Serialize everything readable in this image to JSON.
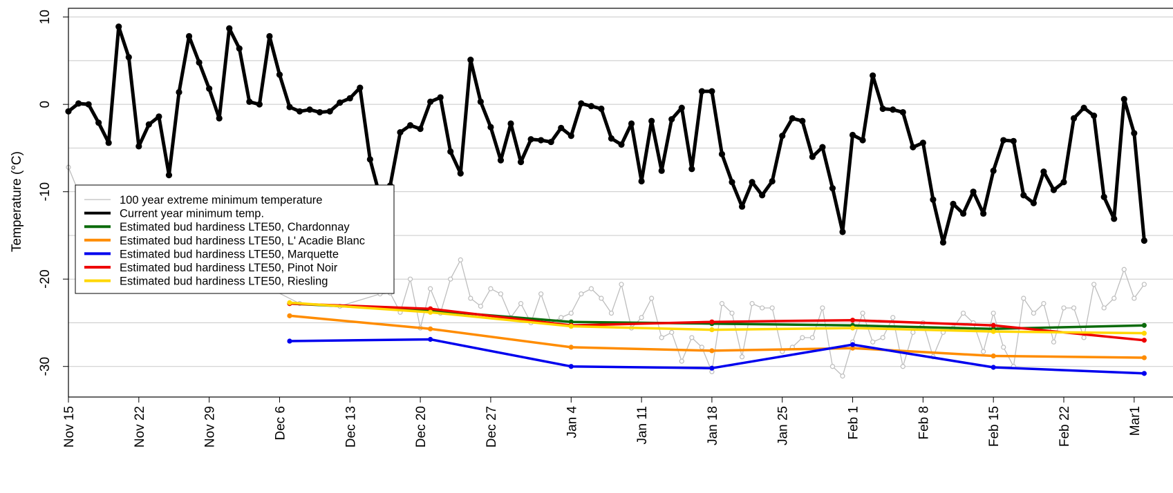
{
  "chart_data": {
    "type": "line",
    "title": "",
    "xlabel": "",
    "ylabel": "Temperature (°C)",
    "ylim": [
      -33.5,
      11
    ],
    "xlim": [
      "2021-11-15",
      "2022-03-05"
    ],
    "grid": "horizontal",
    "legend_position": "middle-left",
    "yticks": [
      10,
      0,
      -10,
      -20,
      -30
    ],
    "xticks": [
      {
        "date": "2021-11-15",
        "label": "Nov 15"
      },
      {
        "date": "2021-11-22",
        "label": "Nov 22"
      },
      {
        "date": "2021-11-29",
        "label": "Nov 29"
      },
      {
        "date": "2021-12-06",
        "label": "Dec 6"
      },
      {
        "date": "2021-12-13",
        "label": "Dec 13"
      },
      {
        "date": "2021-12-20",
        "label": "Dec 20"
      },
      {
        "date": "2021-12-27",
        "label": "Dec 27"
      },
      {
        "date": "2022-01-04",
        "label": "Jan 4"
      },
      {
        "date": "2022-01-11",
        "label": "Jan 11"
      },
      {
        "date": "2022-01-18",
        "label": "Jan 18"
      },
      {
        "date": "2022-01-25",
        "label": "Jan 25"
      },
      {
        "date": "2022-02-01",
        "label": "Feb 1"
      },
      {
        "date": "2022-02-08",
        "label": "Feb 8"
      },
      {
        "date": "2022-02-15",
        "label": "Feb 15"
      },
      {
        "date": "2022-02-22",
        "label": "Feb 22"
      },
      {
        "date": "2022-03-01",
        "label": "Mar1"
      }
    ],
    "series": [
      {
        "name": "100 year extreme minimum temperature",
        "color": "#bdbdbd",
        "style": "thin-open-markers",
        "points": [
          [
            "2021-11-15",
            -7.2
          ],
          [
            "2021-11-16",
            -10
          ],
          [
            "2021-12-08",
            -22.8
          ],
          [
            "2021-12-12",
            -23.1
          ],
          [
            "2021-12-16",
            -21.7
          ],
          [
            "2021-12-17",
            -21.6
          ],
          [
            "2021-12-18",
            -23.8
          ],
          [
            "2021-12-19",
            -20
          ],
          [
            "2021-12-20",
            -25.6
          ],
          [
            "2021-12-21",
            -21.1
          ],
          [
            "2021-12-22",
            -23.9
          ],
          [
            "2021-12-23",
            -20
          ],
          [
            "2021-12-24",
            -17.8
          ],
          [
            "2021-12-25",
            -22.2
          ],
          [
            "2021-12-26",
            -23.1
          ],
          [
            "2021-12-27",
            -21.1
          ],
          [
            "2021-12-28",
            -21.7
          ],
          [
            "2021-12-29",
            -24.4
          ],
          [
            "2021-12-30",
            -22.8
          ],
          [
            "2021-12-31",
            -25
          ],
          [
            "2022-01-01",
            -21.7
          ],
          [
            "2022-01-02",
            -25
          ],
          [
            "2022-01-03",
            -24.4
          ],
          [
            "2022-01-04",
            -23.9
          ],
          [
            "2022-01-05",
            -21.7
          ],
          [
            "2022-01-06",
            -21.1
          ],
          [
            "2022-01-07",
            -22.2
          ],
          [
            "2022-01-08",
            -23.9
          ],
          [
            "2022-01-09",
            -20.6
          ],
          [
            "2022-01-10",
            -25.6
          ],
          [
            "2022-01-11",
            -24.4
          ],
          [
            "2022-01-12",
            -22.2
          ],
          [
            "2022-01-13",
            -26.7
          ],
          [
            "2022-01-14",
            -26.1
          ],
          [
            "2022-01-15",
            -29.4
          ],
          [
            "2022-01-16",
            -26.7
          ],
          [
            "2022-01-17",
            -27.8
          ],
          [
            "2022-01-18",
            -30.6
          ],
          [
            "2022-01-19",
            -22.8
          ],
          [
            "2022-01-20",
            -23.9
          ],
          [
            "2022-01-21",
            -28.9
          ],
          [
            "2022-01-22",
            -22.8
          ],
          [
            "2022-01-23",
            -23.3
          ],
          [
            "2022-01-24",
            -23.3
          ],
          [
            "2022-01-25",
            -28.3
          ],
          [
            "2022-01-26",
            -27.8
          ],
          [
            "2022-01-27",
            -26.7
          ],
          [
            "2022-01-28",
            -26.7
          ],
          [
            "2022-01-29",
            -23.3
          ],
          [
            "2022-01-30",
            -30
          ],
          [
            "2022-01-31",
            -31.1
          ],
          [
            "2022-02-01",
            -27.2
          ],
          [
            "2022-02-02",
            -23.9
          ],
          [
            "2022-02-03",
            -27.2
          ],
          [
            "2022-02-04",
            -26.7
          ],
          [
            "2022-02-05",
            -24.4
          ],
          [
            "2022-02-06",
            -30
          ],
          [
            "2022-02-07",
            -26.1
          ],
          [
            "2022-02-08",
            -25
          ],
          [
            "2022-02-09",
            -28.9
          ],
          [
            "2022-02-10",
            -26.1
          ],
          [
            "2022-02-11",
            -25.6
          ],
          [
            "2022-02-12",
            -23.9
          ],
          [
            "2022-02-13",
            -25
          ],
          [
            "2022-02-14",
            -28.3
          ],
          [
            "2022-02-15",
            -23.9
          ],
          [
            "2022-02-16",
            -27.8
          ],
          [
            "2022-02-17",
            -30
          ],
          [
            "2022-02-18",
            -22.2
          ],
          [
            "2022-02-19",
            -23.9
          ],
          [
            "2022-02-20",
            -22.8
          ],
          [
            "2022-02-21",
            -27.2
          ],
          [
            "2022-02-22",
            -23.3
          ],
          [
            "2022-02-23",
            -23.3
          ],
          [
            "2022-02-24",
            -26.7
          ],
          [
            "2022-02-25",
            -20.6
          ],
          [
            "2022-02-26",
            -23.3
          ],
          [
            "2022-02-27",
            -22.2
          ],
          [
            "2022-02-28",
            -18.9
          ],
          [
            "2022-03-01",
            -22.2
          ],
          [
            "2022-03-02",
            -20.6
          ]
        ]
      },
      {
        "name": "Current year minimum temp.",
        "color": "#000000",
        "style": "thick-filled-markers",
        "points": [
          [
            "2021-11-15",
            -0.8
          ],
          [
            "2021-11-16",
            0.1
          ],
          [
            "2021-11-17",
            0
          ],
          [
            "2021-11-18",
            -2.1
          ],
          [
            "2021-11-19",
            -4.4
          ],
          [
            "2021-11-20",
            8.9
          ],
          [
            "2021-11-21",
            5.4
          ],
          [
            "2021-11-22",
            -4.8
          ],
          [
            "2021-11-23",
            -2.3
          ],
          [
            "2021-11-24",
            -1.4
          ],
          [
            "2021-11-25",
            -8.1
          ],
          [
            "2021-11-26",
            1.4
          ],
          [
            "2021-11-27",
            7.8
          ],
          [
            "2021-11-28",
            4.8
          ],
          [
            "2021-11-29",
            1.8
          ],
          [
            "2021-11-30",
            -1.6
          ],
          [
            "2021-12-01",
            8.7
          ],
          [
            "2021-12-02",
            6.4
          ],
          [
            "2021-12-03",
            0.3
          ],
          [
            "2021-12-04",
            0
          ],
          [
            "2021-12-05",
            7.8
          ],
          [
            "2021-12-06",
            3.4
          ],
          [
            "2021-12-07",
            -0.3
          ],
          [
            "2021-12-08",
            -0.8
          ],
          [
            "2021-12-09",
            -0.6
          ],
          [
            "2021-12-10",
            -0.9
          ],
          [
            "2021-12-11",
            -0.8
          ],
          [
            "2021-12-12",
            0.2
          ],
          [
            "2021-12-13",
            0.7
          ],
          [
            "2021-12-14",
            1.9
          ],
          [
            "2021-12-15",
            -6.3
          ],
          [
            "2021-12-16",
            -10.6
          ],
          [
            "2021-12-17",
            -9.3
          ],
          [
            "2021-12-18",
            -3.2
          ],
          [
            "2021-12-19",
            -2.4
          ],
          [
            "2021-12-20",
            -2.8
          ],
          [
            "2021-12-21",
            0.3
          ],
          [
            "2021-12-22",
            0.8
          ],
          [
            "2021-12-23",
            -5.4
          ],
          [
            "2021-12-24",
            -7.9
          ],
          [
            "2021-12-25",
            5.1
          ],
          [
            "2021-12-26",
            0.3
          ],
          [
            "2021-12-27",
            -2.6
          ],
          [
            "2021-12-28",
            -6.4
          ],
          [
            "2021-12-29",
            -2.2
          ],
          [
            "2021-12-30",
            -6.6
          ],
          [
            "2021-12-31",
            -4
          ],
          [
            "2022-01-01",
            -4.1
          ],
          [
            "2022-01-02",
            -4.3
          ],
          [
            "2022-01-03",
            -2.7
          ],
          [
            "2022-01-04",
            -3.6
          ],
          [
            "2022-01-05",
            0.1
          ],
          [
            "2022-01-06",
            -0.2
          ],
          [
            "2022-01-07",
            -0.5
          ],
          [
            "2022-01-08",
            -3.9
          ],
          [
            "2022-01-09",
            -4.6
          ],
          [
            "2022-01-10",
            -2.2
          ],
          [
            "2022-01-11",
            -8.8
          ],
          [
            "2022-01-12",
            -1.9
          ],
          [
            "2022-01-13",
            -7.6
          ],
          [
            "2022-01-14",
            -1.7
          ],
          [
            "2022-01-15",
            -0.4
          ],
          [
            "2022-01-16",
            -7.4
          ],
          [
            "2022-01-17",
            1.5
          ],
          [
            "2022-01-18",
            1.5
          ],
          [
            "2022-01-19",
            -5.7
          ],
          [
            "2022-01-20",
            -8.9
          ],
          [
            "2022-01-21",
            -11.7
          ],
          [
            "2022-01-22",
            -8.9
          ],
          [
            "2022-01-23",
            -10.4
          ],
          [
            "2022-01-24",
            -8.8
          ],
          [
            "2022-01-25",
            -3.6
          ],
          [
            "2022-01-26",
            -1.6
          ],
          [
            "2022-01-27",
            -1.9
          ],
          [
            "2022-01-28",
            -6
          ],
          [
            "2022-01-29",
            -4.9
          ],
          [
            "2022-01-30",
            -9.6
          ],
          [
            "2022-01-31",
            -14.6
          ],
          [
            "2022-02-01",
            -3.5
          ],
          [
            "2022-02-02",
            -4.1
          ],
          [
            "2022-02-03",
            3.3
          ],
          [
            "2022-02-04",
            -0.5
          ],
          [
            "2022-02-05",
            -0.6
          ],
          [
            "2022-02-06",
            -0.9
          ],
          [
            "2022-02-07",
            -4.9
          ],
          [
            "2022-02-08",
            -4.4
          ],
          [
            "2022-02-09",
            -10.9
          ],
          [
            "2022-02-10",
            -15.8
          ],
          [
            "2022-02-11",
            -11.4
          ],
          [
            "2022-02-12",
            -12.5
          ],
          [
            "2022-02-13",
            -10
          ],
          [
            "2022-02-14",
            -12.5
          ],
          [
            "2022-02-15",
            -7.6
          ],
          [
            "2022-02-16",
            -4.1
          ],
          [
            "2022-02-17",
            -4.2
          ],
          [
            "2022-02-18",
            -10.4
          ],
          [
            "2022-02-19",
            -11.3
          ],
          [
            "2022-02-20",
            -7.7
          ],
          [
            "2022-02-21",
            -9.8
          ],
          [
            "2022-02-22",
            -8.9
          ],
          [
            "2022-02-23",
            -1.6
          ],
          [
            "2022-02-24",
            -0.4
          ],
          [
            "2022-02-25",
            -1.3
          ],
          [
            "2022-02-26",
            -10.6
          ],
          [
            "2022-02-27",
            -13.1
          ],
          [
            "2022-02-28",
            0.6
          ],
          [
            "2022-03-01",
            -3.3
          ],
          [
            "2022-03-02",
            -15.6
          ]
        ]
      },
      {
        "name": "Estimated bud hardiness LTE50, Chardonnay",
        "color": "#0b6b0b",
        "style": "line-filled-markers",
        "points": [
          [
            "2021-12-07",
            -22.8
          ],
          [
            "2021-12-21",
            -23.6
          ],
          [
            "2022-01-04",
            -24.9
          ],
          [
            "2022-01-18",
            -25.1
          ],
          [
            "2022-02-01",
            -25.3
          ],
          [
            "2022-02-15",
            -25.7
          ],
          [
            "2022-03-02",
            -25.3
          ]
        ]
      },
      {
        "name": "Estimated bud hardiness LTE50, L' Acadie Blanc",
        "color": "#ff8c00",
        "style": "line-filled-markers",
        "points": [
          [
            "2021-12-07",
            -24.2
          ],
          [
            "2021-12-21",
            -25.7
          ],
          [
            "2022-01-04",
            -27.8
          ],
          [
            "2022-01-18",
            -28.2
          ],
          [
            "2022-02-01",
            -27.9
          ],
          [
            "2022-02-15",
            -28.8
          ],
          [
            "2022-03-02",
            -29
          ]
        ]
      },
      {
        "name": "Estimated bud hardiness LTE50, Marquette",
        "color": "#0000ee",
        "style": "line-filled-markers",
        "points": [
          [
            "2021-12-07",
            -27.1
          ],
          [
            "2021-12-21",
            -26.9
          ],
          [
            "2022-01-04",
            -30
          ],
          [
            "2022-01-18",
            -30.2
          ],
          [
            "2022-02-01",
            -27.5
          ],
          [
            "2022-02-15",
            -30.1
          ],
          [
            "2022-03-02",
            -30.8
          ]
        ]
      },
      {
        "name": "Estimated bud hardiness LTE50, Pinot Noir",
        "color": "#ee0000",
        "style": "line-filled-markers",
        "points": [
          [
            "2021-12-07",
            -22.8
          ],
          [
            "2021-12-21",
            -23.4
          ],
          [
            "2022-01-04",
            -25.3
          ],
          [
            "2022-01-18",
            -24.9
          ],
          [
            "2022-02-01",
            -24.7
          ],
          [
            "2022-02-15",
            -25.3
          ],
          [
            "2022-03-02",
            -27
          ]
        ]
      },
      {
        "name": "Estimated bud hardiness LTE50, Riesling",
        "color": "#ffd700",
        "style": "line-filled-markers",
        "points": [
          [
            "2021-12-07",
            -22.7
          ],
          [
            "2021-12-21",
            -23.8
          ],
          [
            "2022-01-04",
            -25.4
          ],
          [
            "2022-01-18",
            -25.8
          ],
          [
            "2022-02-01",
            -25.6
          ],
          [
            "2022-02-15",
            -26
          ],
          [
            "2022-03-02",
            -26.2
          ]
        ]
      }
    ]
  }
}
